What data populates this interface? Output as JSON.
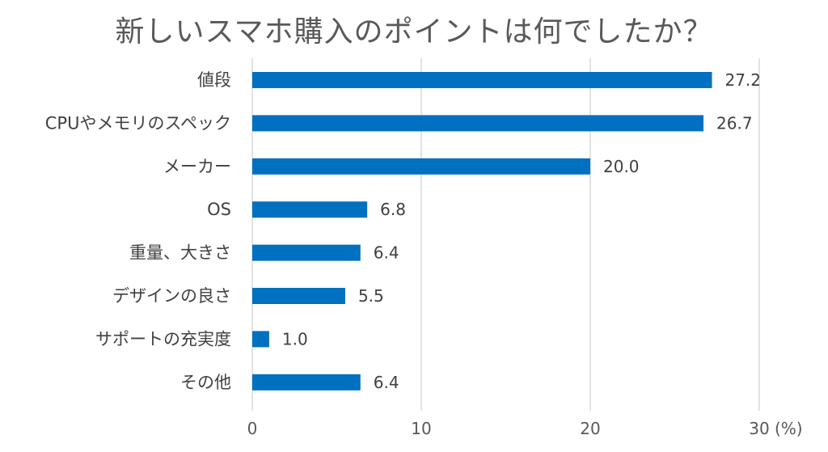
{
  "chart_data": {
    "type": "bar",
    "orientation": "horizontal",
    "title": "新しいスマホ購入のポイントは何でしたか？",
    "categories": [
      "値段",
      "CPUやメモリのスペック",
      "メーカー",
      "OS",
      "重量、大きさ",
      "デザインの良さ",
      "サポートの充実度",
      "その他"
    ],
    "values": [
      27.2,
      26.7,
      20.0,
      6.8,
      6.4,
      5.5,
      1.0,
      6.4
    ],
    "value_labels": [
      "27.2",
      "26.7",
      "20.0",
      "6.8",
      "6.4",
      "5.5",
      "1.0",
      "6.4"
    ],
    "xlim": [
      0,
      30
    ],
    "xticks": [
      0,
      10,
      20,
      30
    ],
    "xtick_labels": [
      "0",
      "10",
      "20",
      "30"
    ],
    "unit": "(%)",
    "grid": true,
    "legend": false,
    "bar_color": "#0070C0"
  }
}
